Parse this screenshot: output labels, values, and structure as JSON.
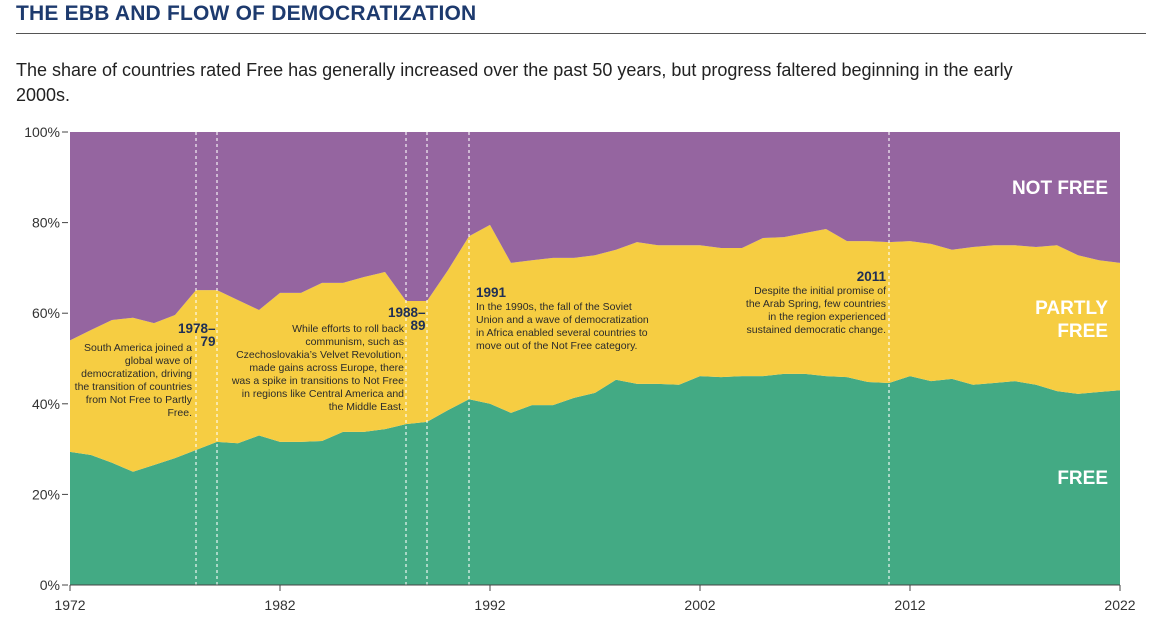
{
  "title": "THE EBB AND FLOW OF DEMOCRATIZATION",
  "subtitle": "The share of countries rated Free has generally increased over the past 50 years, but progress faltered beginning in the early 2000s.",
  "chart_data": {
    "type": "area",
    "stacked": true,
    "xlim": [
      1972,
      2022
    ],
    "ylim": [
      0,
      100
    ],
    "x_ticks": [
      "1972",
      "1982",
      "1992",
      "2002",
      "2012",
      "2022"
    ],
    "y_ticks": [
      "0%",
      "20%",
      "40%",
      "60%",
      "80%",
      "100%"
    ],
    "x": [
      1972,
      1973,
      1974,
      1975,
      1976,
      1977,
      1978,
      1979,
      1980,
      1981,
      1982,
      1983,
      1984,
      1985,
      1986,
      1987,
      1988,
      1989,
      1990,
      1991,
      1992,
      1993,
      1994,
      1995,
      1996,
      1997,
      1998,
      1999,
      2000,
      2001,
      2002,
      2003,
      2004,
      2005,
      2006,
      2007,
      2008,
      2009,
      2010,
      2011,
      2012,
      2013,
      2014,
      2015,
      2016,
      2017,
      2018,
      2019,
      2020,
      2021,
      2022
    ],
    "series": [
      {
        "name": "FREE",
        "color": "#43aa84",
        "values": [
          29.4,
          28.7,
          27,
          25,
          26.5,
          28,
          29.8,
          31.6,
          31.3,
          33,
          31.6,
          31.6,
          31.8,
          33.8,
          33.8,
          34.4,
          35.5,
          36,
          38.6,
          41,
          40,
          38,
          39.7,
          39.7,
          41.3,
          42.4,
          45.3,
          44.4,
          44.4,
          44.2,
          46.1,
          45.9,
          46.1,
          46.1,
          46.6,
          46.6,
          46.1,
          45.9,
          44.8,
          44.6,
          46.1,
          45,
          45.5,
          44.2,
          44.6,
          45,
          44.2,
          42.8,
          42.2,
          42.6,
          43
        ]
      },
      {
        "name": "PARTLY FREE",
        "color": "#f6cd42",
        "values": [
          24.6,
          27.6,
          31.5,
          34,
          31.3,
          31.6,
          35.3,
          33.5,
          31.6,
          27.7,
          32.9,
          32.9,
          34.9,
          32.9,
          34.2,
          34.7,
          27.2,
          26.7,
          30.9,
          36,
          39.5,
          33.1,
          32,
          32.5,
          30.9,
          30.4,
          28.7,
          31.3,
          30.6,
          30.8,
          28.9,
          28.5,
          28.3,
          30.5,
          30.2,
          31.1,
          32.5,
          30,
          31.1,
          31.1,
          29.8,
          30.3,
          28.5,
          30.4,
          30.4,
          30,
          30.4,
          32.2,
          30.6,
          29.1,
          28.1
        ]
      },
      {
        "name": "NOT FREE",
        "color": "#9565a0",
        "values": [
          46,
          43.7,
          41.5,
          41,
          42.2,
          40.4,
          34.9,
          34.9,
          37.1,
          39.3,
          35.5,
          35.5,
          33.3,
          33.3,
          32,
          30.9,
          37.3,
          37.3,
          30.5,
          23,
          20.5,
          28.9,
          28.3,
          27.8,
          27.8,
          27.2,
          26,
          24.3,
          25,
          25,
          25,
          25.6,
          25.6,
          23.4,
          23.2,
          22.3,
          21.4,
          24.1,
          24.1,
          24.3,
          24.1,
          24.7,
          26,
          25.4,
          25,
          25,
          25.4,
          25,
          27.2,
          28.3,
          28.9
        ]
      }
    ],
    "marker_years": [
      1978,
      1979,
      1988,
      1989,
      1991,
      2011
    ],
    "annotations": [
      {
        "heading": "1978–79",
        "text": "South America joined a global wave of democratization, driving the transition of countries from Not Free to Partly Free."
      },
      {
        "heading": "1988–89",
        "text": "While efforts to roll back communism, such as Czechoslovakia’s Velvet Revolution, made gains across Europe, there was a spike in transitions to Not Free in regions like Central America and the Middle East."
      },
      {
        "heading": "1991",
        "text": "In the 1990s, the fall of the Soviet Union and a wave of democratization in Africa enabled several countries to move out of the Not Free category."
      },
      {
        "heading": "2011",
        "text": "Despite the initial promise of the Arab Spring, few countries in the region experienced sustained democratic change."
      }
    ],
    "series_labels": {
      "not_free": "NOT FREE",
      "partly_free_1": "PARTLY",
      "partly_free_2": "FREE",
      "free": "FREE"
    }
  }
}
